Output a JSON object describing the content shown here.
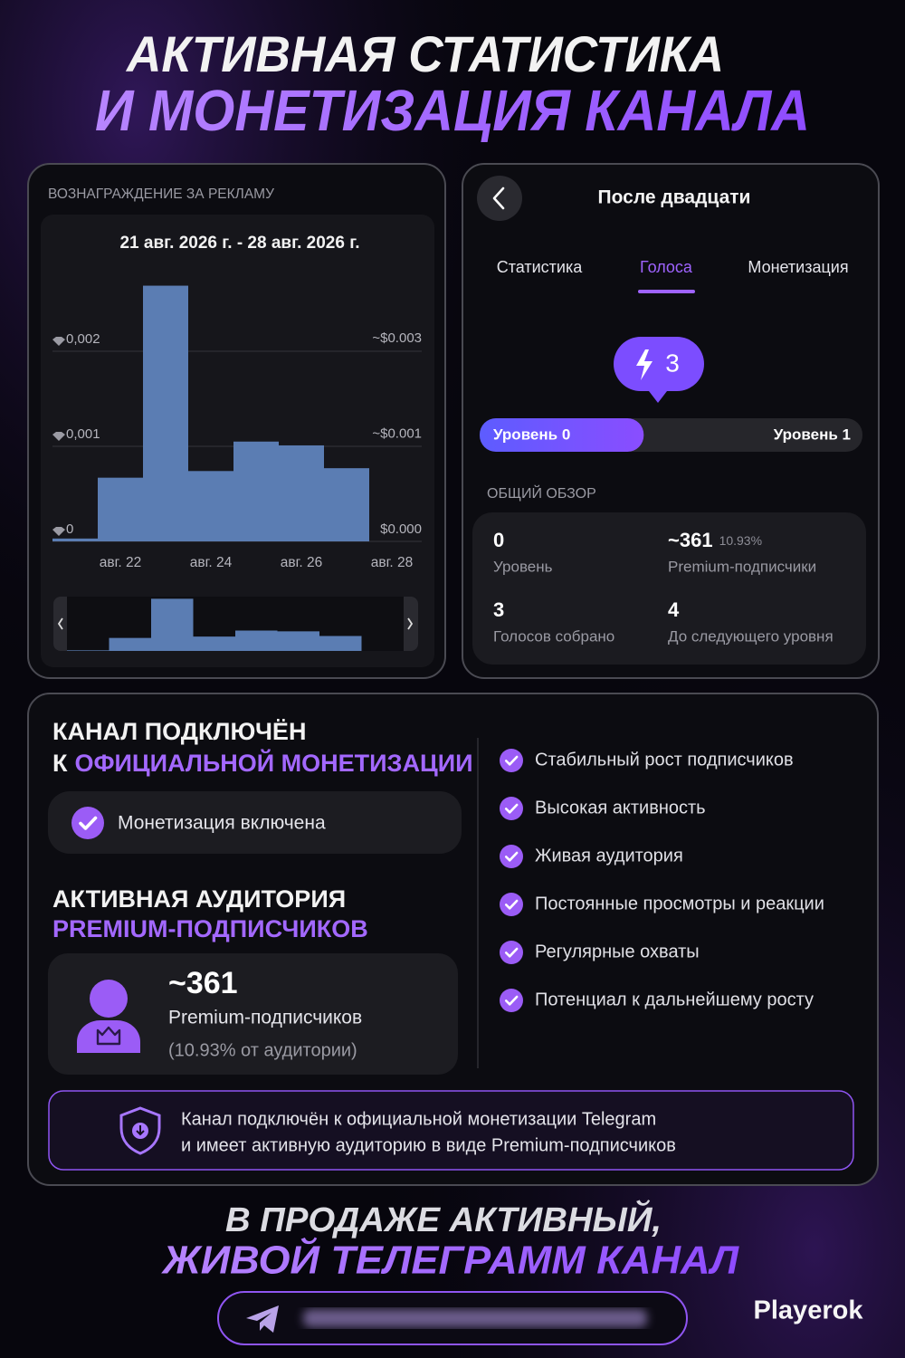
{
  "header": {
    "line1": "АКТИВНАЯ СТАТИСТИКА",
    "line2": "И МОНЕТИЗАЦИЯ КАНАЛА"
  },
  "rewards": {
    "label": "ВОЗНАГРАЖДЕНИЕ ЗА РЕКЛАМУ"
  },
  "chart_data": {
    "type": "bar",
    "title": "21 авг. 2026 г. - 28 авг. 2026 г.",
    "categories": [
      null,
      "авг. 22",
      null,
      "авг. 24",
      null,
      "авг. 26",
      null,
      "авг. 28"
    ],
    "values": [
      3e-05,
      0.00067,
      0.00269,
      0.00074,
      0.00105,
      0.00101,
      0.00077,
      0
    ],
    "color": "#5b7db3",
    "ylim": [
      0,
      0.0028
    ],
    "yticks": [
      0,
      {
        "value": 0.001,
        "label": "0,001"
      },
      {
        "value": 0.002,
        "label": "0,002"
      }
    ],
    "y2lim": [
      0,
      0.0039
    ],
    "y2ticks": [
      {
        "value": 0,
        "label": "$0.000"
      },
      {
        "value": 0.0014,
        "label": "~$0.001"
      },
      {
        "value": 0.0028,
        "label": "~$0.003"
      }
    ],
    "grid": true
  },
  "votes": {
    "title": "После двадцати",
    "tabs": [
      "Статистика",
      "Голоса",
      "Монетизация"
    ],
    "boost_count": 3,
    "level_from": "Уровень 0",
    "level_to": "Уровень 1",
    "overview_label": "ОБЩИЙ ОБЗОР",
    "stats": [
      {
        "value": 0,
        "label": "Уровень"
      },
      {
        "value": "~361",
        "note": "10.93%",
        "label": "Premium-подписчики"
      },
      {
        "value": 3,
        "label": "Голосов собрано"
      },
      {
        "value": 4,
        "label": "До следующего уровня"
      }
    ]
  },
  "monetization": {
    "heading_line1": "КАНАЛ ПОДКЛЮЧЁН",
    "heading_prefix": "К",
    "heading_accent": "ОФИЦИАЛЬНОЙ МОНЕТИЗАЦИИ",
    "status": "Монетизация включена",
    "audience_line1": "АКТИВНАЯ АУДИТОРИЯ",
    "audience_line2": "PREMIUM-ПОДПИСЧИКОВ",
    "premium_count": "~361",
    "premium_label": "Premium-подписчиков",
    "premium_share": "(10.93% от аудитории)",
    "features": [
      "Стабильный рост подписчиков",
      "Высокая активность",
      "Живая аудитория",
      "Постоянные просмотры и реакции",
      "Регулярные охваты",
      "Потенциал к дальнейшему росту"
    ],
    "notice_line1": "Канал подключён к официальной монетизации Telegram",
    "notice_line2": "и имеет активную аудиторию в виде Premium-подписчиков"
  },
  "footer": {
    "line1": "В ПРОДАЖЕ АКТИВНЫЙ,",
    "line2": "ЖИВОЙ ТЕЛЕГРАММ КАНАЛ",
    "brand": "Playerok"
  }
}
